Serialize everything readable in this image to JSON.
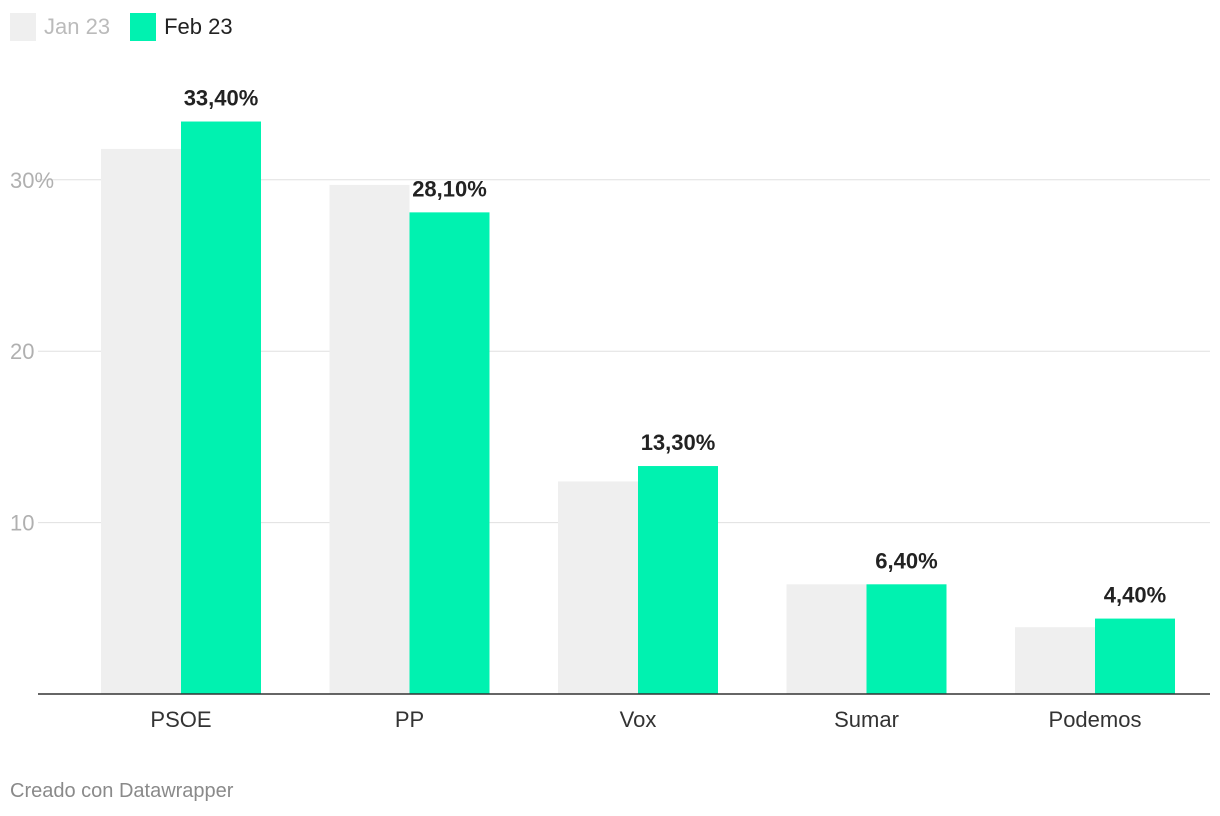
{
  "chart_data": {
    "type": "bar",
    "title": "",
    "xlabel": "",
    "ylabel": "",
    "ylim": [
      0,
      36
    ],
    "yticks": [
      {
        "value": 10,
        "label": "10"
      },
      {
        "value": 20,
        "label": "20"
      },
      {
        "value": 30,
        "label": "30%"
      }
    ],
    "grid": true,
    "legend_position": "top-left",
    "categories": [
      "PSOE",
      "PP",
      "Vox",
      "Sumar",
      "Podemos"
    ],
    "series": [
      {
        "name": "Jan 23",
        "color": "#efefef",
        "values": [
          31.8,
          29.7,
          12.4,
          6.4,
          3.9
        ],
        "labels": [
          "",
          "",
          "",
          "",
          ""
        ]
      },
      {
        "name": "Feb 23",
        "color": "#00f2b0",
        "values": [
          33.4,
          28.1,
          13.3,
          6.4,
          4.4
        ],
        "labels": [
          "33,40%",
          "28,10%",
          "13,30%",
          "6,40%",
          "4,40%"
        ]
      }
    ],
    "legend_text_colors": [
      "#bbbbbb",
      "#222222"
    ]
  },
  "footer": {
    "credit": "Creado con Datawrapper"
  }
}
